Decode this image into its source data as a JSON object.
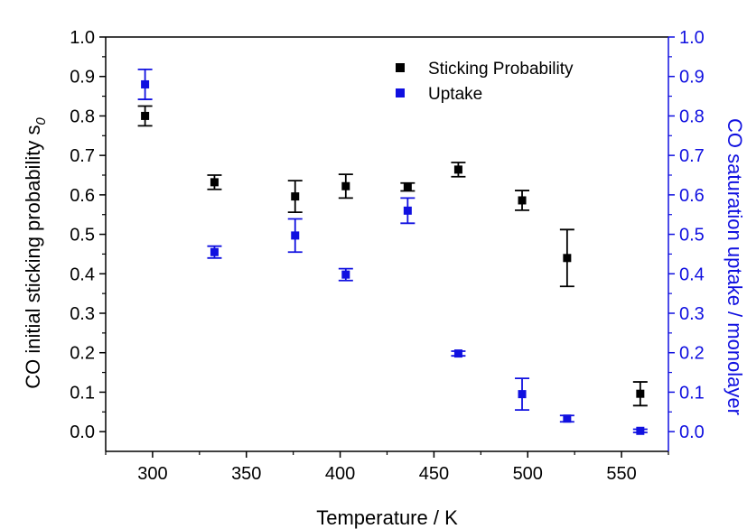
{
  "chart_data": {
    "type": "scatter",
    "xlabel": "Temperature / K",
    "ylabel_left_main": "CO initial sticking probability s",
    "ylabel_left_sub": "0",
    "ylabel_right": "CO saturation uptake / monolayer",
    "xlim": [
      275,
      575
    ],
    "ylim": [
      -0.05,
      1.0
    ],
    "x_ticks": [
      300,
      350,
      400,
      450,
      500,
      550
    ],
    "x_tick_labels": [
      "300",
      "350",
      "400",
      "450",
      "500",
      "550"
    ],
    "y_ticks": [
      0.0,
      0.1,
      0.2,
      0.3,
      0.4,
      0.5,
      0.6,
      0.7,
      0.8,
      0.9,
      1.0
    ],
    "y_tick_labels": [
      "0.0",
      "0.1",
      "0.2",
      "0.3",
      "0.4",
      "0.5",
      "0.6",
      "0.7",
      "0.8",
      "0.9",
      "1.0"
    ],
    "y2_tick_labels": [
      "0.0",
      "0.1",
      "0.2",
      "0.3",
      "0.4",
      "0.5",
      "0.6",
      "0.7",
      "0.8",
      "0.9",
      "1.0"
    ],
    "grid": false,
    "legend_position": "top-right",
    "series": [
      {
        "name": "Sticking Probability",
        "axis": "left",
        "color": "#000000",
        "x": [
          296,
          333,
          376,
          403,
          436,
          463,
          497,
          521,
          560
        ],
        "y": [
          0.8,
          0.632,
          0.596,
          0.622,
          0.62,
          0.664,
          0.586,
          0.44,
          0.096
        ],
        "err": [
          0.025,
          0.018,
          0.04,
          0.03,
          0.01,
          0.018,
          0.025,
          0.072,
          0.03
        ]
      },
      {
        "name": "Uptake",
        "axis": "right",
        "color": "#1010e0",
        "x": [
          296,
          333,
          376,
          403,
          436,
          463,
          497,
          521,
          560
        ],
        "y": [
          0.88,
          0.455,
          0.497,
          0.398,
          0.56,
          0.198,
          0.095,
          0.033,
          0.002
        ],
        "err": [
          0.038,
          0.015,
          0.042,
          0.015,
          0.032,
          0.006,
          0.04,
          0.008,
          0.004
        ]
      }
    ]
  },
  "colors": {
    "left_axis": "#000000",
    "right_axis": "#1010e0"
  }
}
